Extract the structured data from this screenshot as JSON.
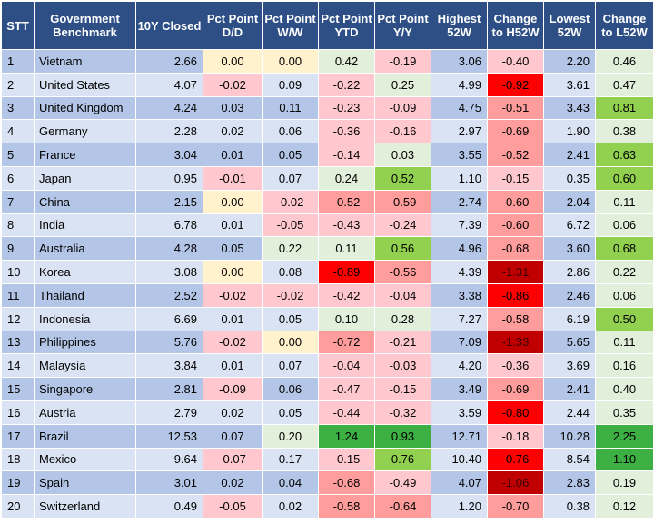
{
  "columns": [
    "STT",
    "Government Benchmark",
    "10Y Closed",
    "Pct Point D/D",
    "Pct Point W/W",
    "Pct Point YTD",
    "Pct Point Y/Y",
    "Highest 52W",
    "Change to H52W",
    "Lowest 52W",
    "Change to L52W"
  ],
  "rows": [
    {
      "stt": "1",
      "country": "Vietnam",
      "closed": "2.66",
      "dd": "0.00",
      "ww": "0.00",
      "ytd": "0.42",
      "yy": "-0.19",
      "h52": "3.06",
      "ch52": "-0.40",
      "l52": "2.20",
      "cl52": "0.46"
    },
    {
      "stt": "2",
      "country": "United States",
      "closed": "4.07",
      "dd": "-0.02",
      "ww": "0.09",
      "ytd": "-0.22",
      "yy": "0.25",
      "h52": "4.99",
      "ch52": "-0.92",
      "l52": "3.61",
      "cl52": "0.47"
    },
    {
      "stt": "3",
      "country": "United Kingdom",
      "closed": "4.24",
      "dd": "0.03",
      "ww": "0.11",
      "ytd": "-0.23",
      "yy": "-0.09",
      "h52": "4.75",
      "ch52": "-0.51",
      "l52": "3.43",
      "cl52": "0.81"
    },
    {
      "stt": "4",
      "country": "Germany",
      "closed": "2.28",
      "dd": "0.02",
      "ww": "0.06",
      "ytd": "-0.36",
      "yy": "-0.16",
      "h52": "2.97",
      "ch52": "-0.69",
      "l52": "1.90",
      "cl52": "0.38"
    },
    {
      "stt": "5",
      "country": "France",
      "closed": "3.04",
      "dd": "0.01",
      "ww": "0.05",
      "ytd": "-0.14",
      "yy": "0.03",
      "h52": "3.55",
      "ch52": "-0.52",
      "l52": "2.41",
      "cl52": "0.63"
    },
    {
      "stt": "6",
      "country": "Japan",
      "closed": "0.95",
      "dd": "-0.01",
      "ww": "0.07",
      "ytd": "0.24",
      "yy": "0.52",
      "h52": "1.10",
      "ch52": "-0.15",
      "l52": "0.35",
      "cl52": "0.60"
    },
    {
      "stt": "7",
      "country": "China",
      "closed": "2.15",
      "dd": "0.00",
      "ww": "-0.02",
      "ytd": "-0.52",
      "yy": "-0.59",
      "h52": "2.74",
      "ch52": "-0.60",
      "l52": "2.04",
      "cl52": "0.11"
    },
    {
      "stt": "8",
      "country": "India",
      "closed": "6.78",
      "dd": "0.01",
      "ww": "-0.05",
      "ytd": "-0.43",
      "yy": "-0.24",
      "h52": "7.39",
      "ch52": "-0.60",
      "l52": "6.72",
      "cl52": "0.06"
    },
    {
      "stt": "9",
      "country": "Australia",
      "closed": "4.28",
      "dd": "0.05",
      "ww": "0.22",
      "ytd": "0.11",
      "yy": "0.56",
      "h52": "4.96",
      "ch52": "-0.68",
      "l52": "3.60",
      "cl52": "0.68"
    },
    {
      "stt": "10",
      "country": "Korea",
      "closed": "3.08",
      "dd": "0.00",
      "ww": "0.08",
      "ytd": "-0.89",
      "yy": "-0.56",
      "h52": "4.39",
      "ch52": "-1.31",
      "l52": "2.86",
      "cl52": "0.22"
    },
    {
      "stt": "11",
      "country": "Thailand",
      "closed": "2.52",
      "dd": "-0.02",
      "ww": "-0.02",
      "ytd": "-0.42",
      "yy": "-0.04",
      "h52": "3.38",
      "ch52": "-0.86",
      "l52": "2.46",
      "cl52": "0.06"
    },
    {
      "stt": "12",
      "country": "Indonesia",
      "closed": "6.69",
      "dd": "0.01",
      "ww": "0.05",
      "ytd": "0.10",
      "yy": "0.28",
      "h52": "7.27",
      "ch52": "-0.58",
      "l52": "6.19",
      "cl52": "0.50"
    },
    {
      "stt": "13",
      "country": "Philippines",
      "closed": "5.76",
      "dd": "-0.02",
      "ww": "0.00",
      "ytd": "-0.72",
      "yy": "-0.21",
      "h52": "7.09",
      "ch52": "-1.33",
      "l52": "5.65",
      "cl52": "0.11"
    },
    {
      "stt": "14",
      "country": "Malaysia",
      "closed": "3.84",
      "dd": "0.01",
      "ww": "0.07",
      "ytd": "-0.04",
      "yy": "-0.03",
      "h52": "4.20",
      "ch52": "-0.36",
      "l52": "3.69",
      "cl52": "0.16"
    },
    {
      "stt": "15",
      "country": "Singapore",
      "closed": "2.81",
      "dd": "-0.09",
      "ww": "0.06",
      "ytd": "-0.47",
      "yy": "-0.15",
      "h52": "3.49",
      "ch52": "-0.69",
      "l52": "2.41",
      "cl52": "0.40"
    },
    {
      "stt": "16",
      "country": "Austria",
      "closed": "2.79",
      "dd": "0.02",
      "ww": "0.05",
      "ytd": "-0.44",
      "yy": "-0.32",
      "h52": "3.59",
      "ch52": "-0.80",
      "l52": "2.44",
      "cl52": "0.35"
    },
    {
      "stt": "17",
      "country": "Brazil",
      "closed": "12.53",
      "dd": "0.07",
      "ww": "0.20",
      "ytd": "1.24",
      "yy": "0.93",
      "h52": "12.71",
      "ch52": "-0.18",
      "l52": "10.28",
      "cl52": "2.25"
    },
    {
      "stt": "18",
      "country": "Mexico",
      "closed": "9.64",
      "dd": "-0.07",
      "ww": "0.17",
      "ytd": "-0.15",
      "yy": "0.76",
      "h52": "10.40",
      "ch52": "-0.76",
      "l52": "8.54",
      "cl52": "1.10"
    },
    {
      "stt": "19",
      "country": "Spain",
      "closed": "3.01",
      "dd": "0.02",
      "ww": "0.04",
      "ytd": "-0.68",
      "yy": "-0.49",
      "h52": "4.07",
      "ch52": "-1.06",
      "l52": "2.83",
      "cl52": "0.19"
    },
    {
      "stt": "20",
      "country": "Switzerland",
      "closed": "0.49",
      "dd": "-0.05",
      "ww": "0.02",
      "ytd": "-0.58",
      "yy": "-0.64",
      "h52": "1.20",
      "ch52": "-0.70",
      "l52": "0.38",
      "cl52": "0.12"
    }
  ],
  "colors": {
    "header_bg": "#2e4f86",
    "row_odd_bg": "#b4c6e7",
    "row_even_bg": "#dae3f3",
    "zero_yellow": "#fff2cc",
    "neg_light": "#ffc7ce",
    "neg_medium": "#ff9c9c",
    "neg_strong": "#ff0000",
    "neg_darkest": "#c00000",
    "pos_light": "#e2efda",
    "pos_medium": "#92d050",
    "pos_strong": "#3cb043"
  }
}
